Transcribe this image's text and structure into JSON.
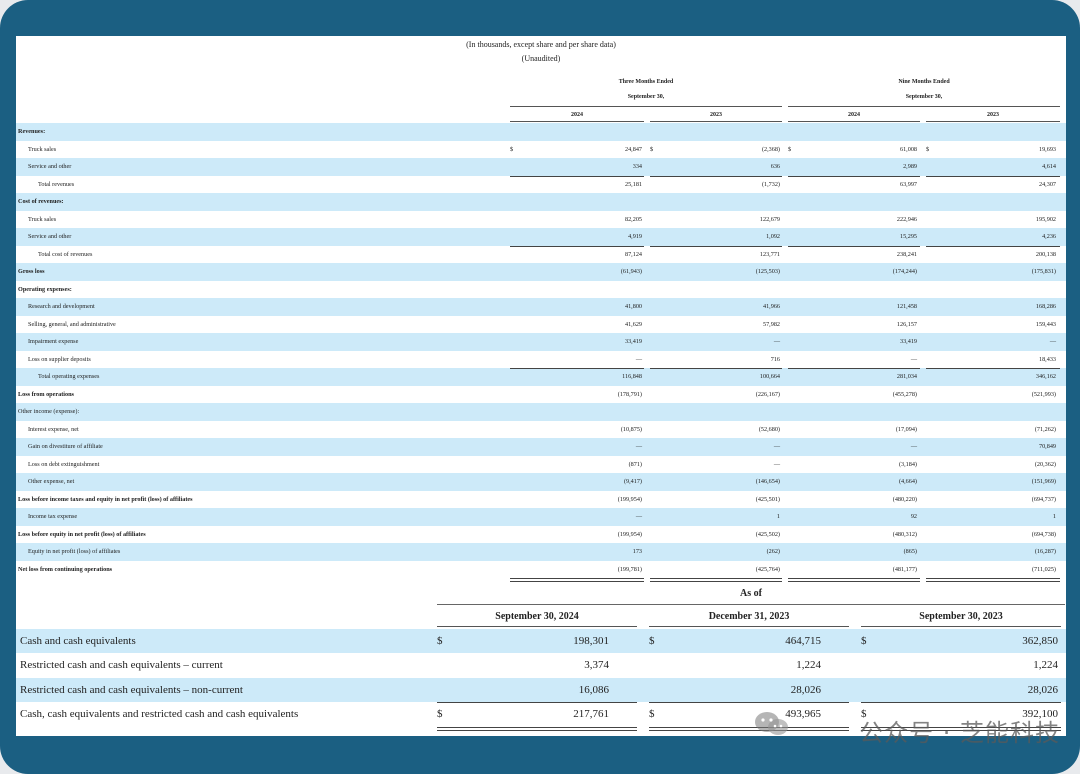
{
  "header": {
    "line1": "(In thousands, except share and per share data)",
    "line2": "(Unaudited)",
    "group1_line1": "Three Months Ended",
    "group1_line2": "September 30,",
    "group2_line1": "Nine Months Ended",
    "group2_line2": "September 30,",
    "years": [
      "2024",
      "2023",
      "2024",
      "2023"
    ]
  },
  "income_rows": [
    {
      "label": "Revenues:",
      "level": 0,
      "bold": true,
      "blue": true,
      "values": [
        "",
        "",
        "",
        ""
      ],
      "dollar": false
    },
    {
      "label": "Truck sales",
      "level": 1,
      "bold": false,
      "blue": false,
      "values": [
        "24,847",
        "(2,368)",
        "61,008",
        "19,693"
      ],
      "dollar": true
    },
    {
      "label": "Service and other",
      "level": 1,
      "bold": false,
      "blue": true,
      "values": [
        "334",
        "636",
        "2,989",
        "4,614"
      ],
      "dollar": false
    },
    {
      "label": "Total revenues",
      "level": 2,
      "bold": false,
      "blue": false,
      "values": [
        "25,181",
        "(1,732)",
        "63,997",
        "24,307"
      ],
      "dollar": false
    },
    {
      "label": "Cost of revenues:",
      "level": 0,
      "bold": true,
      "blue": true,
      "values": [
        "",
        "",
        "",
        ""
      ],
      "dollar": false
    },
    {
      "label": "Truck sales",
      "level": 1,
      "bold": false,
      "blue": false,
      "values": [
        "82,205",
        "122,679",
        "222,946",
        "195,902"
      ],
      "dollar": false
    },
    {
      "label": "Service and other",
      "level": 1,
      "bold": false,
      "blue": true,
      "values": [
        "4,919",
        "1,092",
        "15,295",
        "4,236"
      ],
      "dollar": false
    },
    {
      "label": "Total cost of revenues",
      "level": 2,
      "bold": false,
      "blue": false,
      "values": [
        "87,124",
        "123,771",
        "238,241",
        "200,138"
      ],
      "dollar": false
    },
    {
      "label": "Gross loss",
      "level": 0,
      "bold": true,
      "blue": true,
      "values": [
        "(61,943)",
        "(125,503)",
        "(174,244)",
        "(175,831)"
      ],
      "dollar": false
    },
    {
      "label": "Operating expenses:",
      "level": 0,
      "bold": true,
      "blue": false,
      "values": [
        "",
        "",
        "",
        ""
      ],
      "dollar": false
    },
    {
      "label": "Research and development",
      "level": 1,
      "bold": false,
      "blue": true,
      "values": [
        "41,800",
        "41,966",
        "121,458",
        "168,286"
      ],
      "dollar": false
    },
    {
      "label": "Selling, general, and administrative",
      "level": 1,
      "bold": false,
      "blue": false,
      "values": [
        "41,629",
        "57,982",
        "126,157",
        "159,443"
      ],
      "dollar": false
    },
    {
      "label": "Impairment expense",
      "level": 1,
      "bold": false,
      "blue": true,
      "values": [
        "33,419",
        "—",
        "33,419",
        "—"
      ],
      "dollar": false
    },
    {
      "label": "Loss on supplier deposits",
      "level": 1,
      "bold": false,
      "blue": false,
      "values": [
        "—",
        "716",
        "—",
        "18,433"
      ],
      "dollar": false
    },
    {
      "label": "Total operating expenses",
      "level": 2,
      "bold": false,
      "blue": true,
      "values": [
        "116,848",
        "100,664",
        "281,034",
        "346,162"
      ],
      "dollar": false
    },
    {
      "label": "Loss from operations",
      "level": 0,
      "bold": true,
      "blue": false,
      "values": [
        "(178,791)",
        "(226,167)",
        "(455,278)",
        "(521,993)"
      ],
      "dollar": false
    },
    {
      "label": "Other income (expense):",
      "level": 0,
      "bold": false,
      "blue": true,
      "values": [
        "",
        "",
        "",
        ""
      ],
      "dollar": false
    },
    {
      "label": "Interest expense, net",
      "level": 1,
      "bold": false,
      "blue": false,
      "values": [
        "(10,875)",
        "(52,680)",
        "(17,094)",
        "(71,262)"
      ],
      "dollar": false
    },
    {
      "label": "Gain on divestiture of affiliate",
      "level": 1,
      "bold": false,
      "blue": true,
      "values": [
        "—",
        "—",
        "—",
        "70,849"
      ],
      "dollar": false
    },
    {
      "label": "Loss on debt extinguishment",
      "level": 1,
      "bold": false,
      "blue": false,
      "values": [
        "(871)",
        "—",
        "(3,184)",
        "(20,362)"
      ],
      "dollar": false
    },
    {
      "label": "Other expense, net",
      "level": 1,
      "bold": false,
      "blue": true,
      "values": [
        "(9,417)",
        "(146,654)",
        "(4,664)",
        "(151,969)"
      ],
      "dollar": false
    },
    {
      "label": "Loss before income taxes and equity in net profit (loss) of affiliates",
      "level": 0,
      "bold": true,
      "blue": false,
      "values": [
        "(199,954)",
        "(425,501)",
        "(480,220)",
        "(694,737)"
      ],
      "dollar": false
    },
    {
      "label": "Income tax expense",
      "level": 1,
      "bold": false,
      "blue": true,
      "values": [
        "—",
        "1",
        "92",
        "1"
      ],
      "dollar": false
    },
    {
      "label": "Loss before equity in net profit (loss) of affiliates",
      "level": 0,
      "bold": true,
      "blue": false,
      "values": [
        "(199,954)",
        "(425,502)",
        "(480,312)",
        "(694,738)"
      ],
      "dollar": false
    },
    {
      "label": "Equity in net profit (loss) of affiliates",
      "level": 1,
      "bold": false,
      "blue": true,
      "values": [
        "173",
        "(262)",
        "(865)",
        "(16,287)"
      ],
      "dollar": false
    },
    {
      "label": "Net loss from continuing operations",
      "level": 0,
      "bold": true,
      "blue": false,
      "values": [
        "(199,781)",
        "(425,764)",
        "(481,177)",
        "(711,025)"
      ],
      "dollar": false
    }
  ],
  "cash_table": {
    "as_of": "As of",
    "columns": [
      "September 30, 2024",
      "December 31, 2023",
      "September 30, 2023"
    ],
    "rows": [
      {
        "label": "Cash and cash equivalents",
        "blue": true,
        "dollar": true,
        "values": [
          "198,301",
          "464,715",
          "362,850"
        ]
      },
      {
        "label": "Restricted cash and cash equivalents – current",
        "blue": false,
        "dollar": false,
        "values": [
          "3,374",
          "1,224",
          "1,224"
        ]
      },
      {
        "label": "Restricted cash and cash equivalents – non-current",
        "blue": true,
        "dollar": false,
        "values": [
          "16,086",
          "28,026",
          "28,026"
        ]
      },
      {
        "label": "Cash, cash equivalents and restricted cash and cash equivalents",
        "blue": false,
        "dollar": true,
        "values": [
          "217,761",
          "493,965",
          "392,100"
        ]
      }
    ],
    "dollar_sign": "$"
  },
  "watermark": {
    "text": "公众号 · 芝能科技",
    "icon": "wechat-icon"
  }
}
